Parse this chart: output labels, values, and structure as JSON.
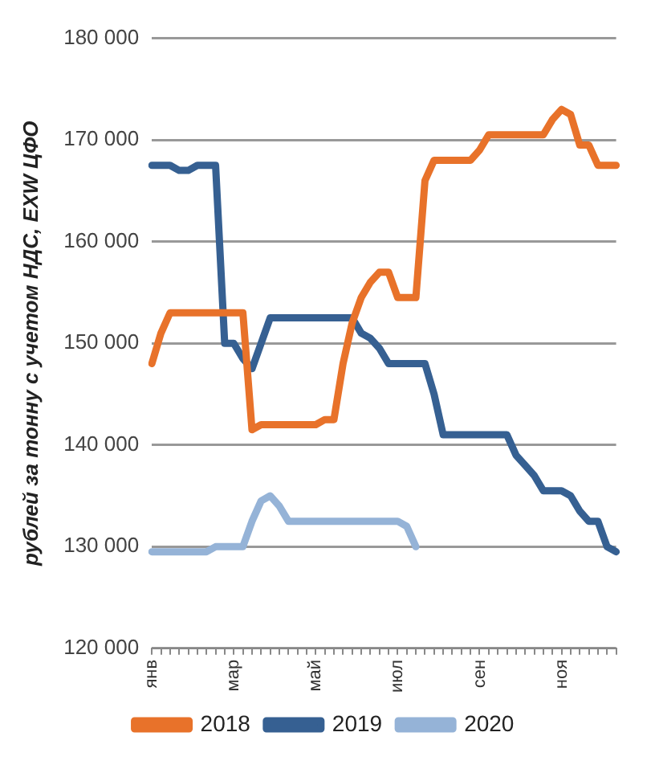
{
  "chart_data": {
    "type": "line",
    "ylabel": "рублей за тонну с учетом НДС, EXW ЦФО",
    "categories": [
      "янв",
      null,
      null,
      null,
      null,
      null,
      null,
      null,
      null,
      "мар",
      null,
      null,
      null,
      null,
      null,
      null,
      null,
      null,
      "май",
      null,
      null,
      null,
      null,
      null,
      null,
      null,
      null,
      "июл",
      null,
      null,
      null,
      null,
      null,
      null,
      null,
      null,
      "сен",
      null,
      null,
      null,
      null,
      null,
      null,
      null,
      null,
      "ноя",
      null,
      null,
      null,
      null,
      null,
      null
    ],
    "series": [
      {
        "name": "2018",
        "color": "#e8722a",
        "values": [
          148000,
          151000,
          153000,
          153000,
          153000,
          153000,
          153000,
          153000,
          153000,
          153000,
          153000,
          141500,
          142000,
          142000,
          142000,
          142000,
          142000,
          142000,
          142000,
          142500,
          142500,
          148000,
          152000,
          154500,
          156000,
          157000,
          157000,
          154500,
          154500,
          154500,
          166000,
          168000,
          168000,
          168000,
          168000,
          168000,
          169000,
          170500,
          170500,
          170500,
          170500,
          170500,
          170500,
          170500,
          172000,
          173000,
          172500,
          169500,
          169500,
          167500,
          167500,
          167500
        ]
      },
      {
        "name": "2019",
        "color": "#366092",
        "values": [
          167500,
          167500,
          167500,
          167000,
          167000,
          167500,
          167500,
          167500,
          150000,
          150000,
          148500,
          147500,
          150000,
          152500,
          152500,
          152500,
          152500,
          152500,
          152500,
          152500,
          152500,
          152500,
          152500,
          151000,
          150500,
          149500,
          148000,
          148000,
          148000,
          148000,
          148000,
          145000,
          141000,
          141000,
          141000,
          141000,
          141000,
          141000,
          141000,
          141000,
          139000,
          138000,
          137000,
          135500,
          135500,
          135500,
          135000,
          133500,
          132500,
          132500,
          130000,
          129500
        ]
      },
      {
        "name": "2020",
        "color": "#95b3d7",
        "values": [
          129500,
          129500,
          129500,
          129500,
          129500,
          129500,
          129500,
          130000,
          130000,
          130000,
          130000,
          132500,
          134500,
          135000,
          134000,
          132500,
          132500,
          132500,
          132500,
          132500,
          132500,
          132500,
          132500,
          132500,
          132500,
          132500,
          132500,
          132500,
          132000,
          130000,
          null,
          null,
          null,
          null,
          null,
          null,
          null,
          null,
          null,
          null,
          null,
          null,
          null,
          null,
          null,
          null,
          null,
          null,
          null,
          null,
          null,
          null
        ]
      }
    ],
    "ylim": [
      120000,
      180000
    ],
    "yticks": [
      {
        "value": 120000,
        "label": "120 000"
      },
      {
        "value": 130000,
        "label": "130 000"
      },
      {
        "value": 140000,
        "label": "140 000"
      },
      {
        "value": 150000,
        "label": "150 000"
      },
      {
        "value": 160000,
        "label": "160 000"
      },
      {
        "value": 170000,
        "label": "170 000"
      },
      {
        "value": 180000,
        "label": "180 000"
      }
    ],
    "grid": "y",
    "legend": "bottom",
    "marker": "none",
    "line_style": "solid"
  }
}
